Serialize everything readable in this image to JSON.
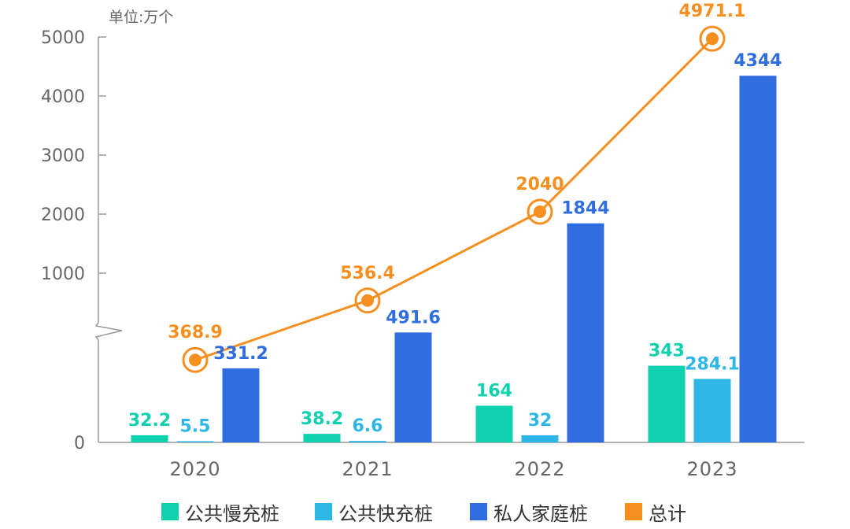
{
  "chart_data": {
    "type": "bar",
    "unit_label": "单位:万个",
    "categories": [
      "2020",
      "2021",
      "2022",
      "2023"
    ],
    "series": [
      {
        "name": "公共慢充桩",
        "kind": "bar",
        "color": "#0ed1ad",
        "values": [
          32.2,
          38.2,
          164,
          343
        ],
        "labels": [
          "32.2",
          "38.2",
          "164",
          "343"
        ]
      },
      {
        "name": "公共快充桩",
        "kind": "bar",
        "color": "#2eb7e6",
        "values": [
          5.5,
          6.6,
          32,
          284.1
        ],
        "labels": [
          "5.5",
          "6.6",
          "32",
          "284.1"
        ]
      },
      {
        "name": "私人家庭桩",
        "kind": "bar",
        "color": "#2f6de0",
        "values": [
          331.2,
          491.6,
          1844,
          4344
        ],
        "labels": [
          "331.2",
          "491.6",
          "1844",
          "4344"
        ]
      },
      {
        "name": "总计",
        "kind": "line",
        "color": "#f58f1f",
        "values": [
          368.9,
          536.4,
          2040,
          4971.1
        ],
        "labels": [
          "368.9",
          "536.4",
          "2040",
          "4971.1"
        ]
      }
    ],
    "y_ticks": [
      0,
      1000,
      2000,
      3000,
      4000,
      5000
    ],
    "y_tick_labels": [
      "0",
      "1000",
      "2000",
      "3000",
      "4000",
      "5000"
    ],
    "y_axis_break": [
      500,
      1000
    ],
    "ylim": [
      0,
      5000
    ],
    "grid": false,
    "legend_position": "bottom"
  }
}
